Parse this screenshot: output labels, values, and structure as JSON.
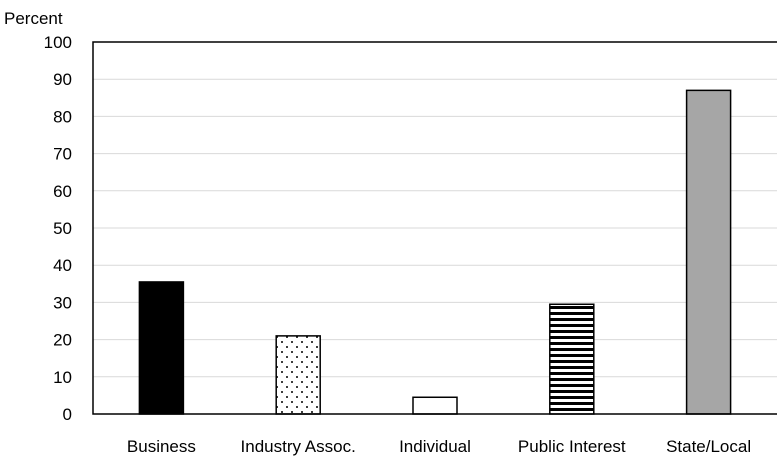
{
  "chart_data": {
    "type": "bar",
    "ylabel": "Percent",
    "ylim": [
      0,
      100
    ],
    "yticks": [
      "0",
      "10",
      "20",
      "30",
      "40",
      "50",
      "60",
      "70",
      "80",
      "90",
      "100"
    ],
    "grid": true,
    "categories": [
      "Business",
      "Industry Assoc.",
      "Individual",
      "Public Interest",
      "State/Local"
    ],
    "values": [
      35.5,
      21,
      4.5,
      29.5,
      87
    ]
  }
}
